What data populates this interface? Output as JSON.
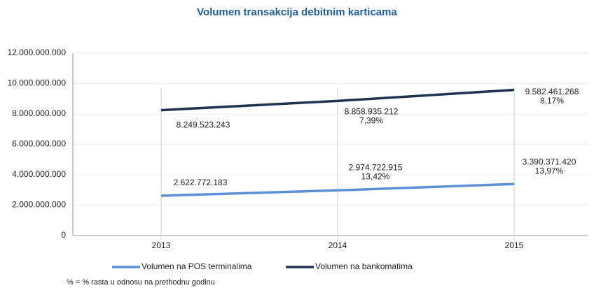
{
  "chart_data": {
    "type": "line",
    "title": "Volumen transakcija debitnim karticama",
    "categories": [
      "2013",
      "2014",
      "2015"
    ],
    "series": [
      {
        "name": "Volumen na POS terminalima",
        "color": "#5b8fd6",
        "values": [
          2622772183,
          2974722915,
          3390371420
        ],
        "value_labels": [
          "2.622.772.183",
          "2.974.722.915",
          "3.390.371.420"
        ],
        "growth_labels": [
          null,
          "13,42%",
          "13,97%"
        ]
      },
      {
        "name": "Volumen na bankomatima",
        "color": "#1f3350",
        "values": [
          8249523243,
          8858935212,
          9582461268
        ],
        "value_labels": [
          "8.249.523.243",
          "8.858.935.212",
          "9.582.461.268"
        ],
        "growth_labels": [
          null,
          "7,39%",
          "8,17%"
        ]
      }
    ],
    "ylim": [
      0,
      12000000000
    ],
    "yticks": [
      {
        "value": 0,
        "label": "0"
      },
      {
        "value": 2000000000,
        "label": "2.000.000.000"
      },
      {
        "value": 4000000000,
        "label": "4.000.000.000"
      },
      {
        "value": 6000000000,
        "label": "6.000.000.000"
      },
      {
        "value": 8000000000,
        "label": "8.000.000.000"
      },
      {
        "value": 10000000000,
        "label": "10.000.000.000"
      },
      {
        "value": 12000000000,
        "label": "12.000.000.000"
      }
    ],
    "grid": true,
    "legend": "bottom",
    "note": "% = % rasta u odnosu na prethodnu godinu"
  }
}
